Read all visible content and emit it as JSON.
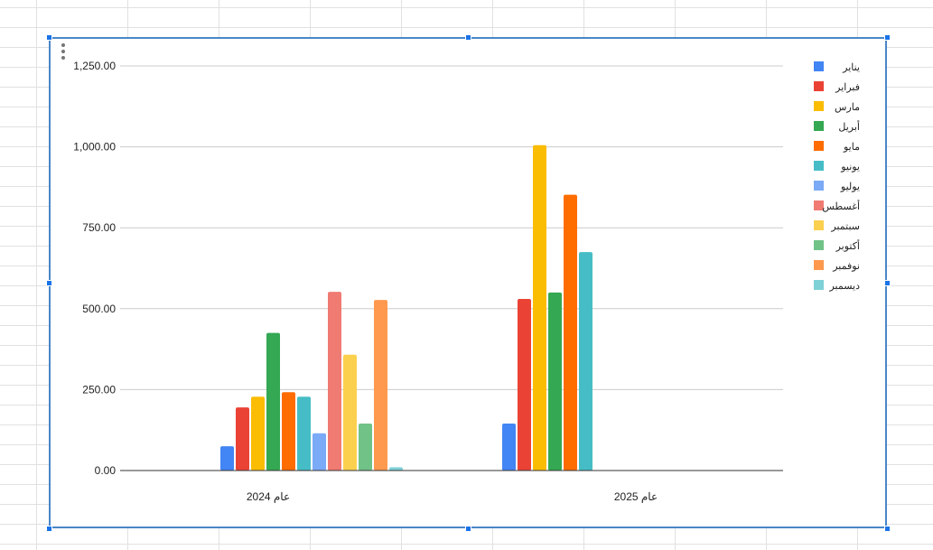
{
  "chart_data": {
    "type": "bar",
    "categories": [
      "عام 2024",
      "عام 2025"
    ],
    "series": [
      {
        "name": "يناير",
        "color": "#4285f4",
        "values": [
          75,
          145
        ]
      },
      {
        "name": "فبراير",
        "color": "#ea4335",
        "values": [
          195,
          530
        ]
      },
      {
        "name": "مارس",
        "color": "#fbbc04",
        "values": [
          228,
          1005
        ]
      },
      {
        "name": "أبريل",
        "color": "#34a853",
        "values": [
          425,
          550
        ]
      },
      {
        "name": "مايو",
        "color": "#ff6d01",
        "values": [
          242,
          852
        ]
      },
      {
        "name": "يونيو",
        "color": "#46bdc6",
        "values": [
          228,
          675
        ]
      },
      {
        "name": "يوليو",
        "color": "#7baaf7",
        "values": [
          115,
          null
        ]
      },
      {
        "name": "أغسطس",
        "color": "#f07b72",
        "values": [
          552,
          null
        ]
      },
      {
        "name": "سبتمبر",
        "color": "#fcd04f",
        "values": [
          358,
          null
        ]
      },
      {
        "name": "أكتوبر",
        "color": "#71c287",
        "values": [
          145,
          null
        ]
      },
      {
        "name": "نوفمبر",
        "color": "#ff994d",
        "values": [
          527,
          null
        ]
      },
      {
        "name": "ديسمبر",
        "color": "#7ed1d7",
        "values": [
          10,
          null
        ]
      }
    ],
    "y_ticks": [
      "0.00",
      "250.00",
      "500.00",
      "750.00",
      "1,000.00",
      "1,250.00"
    ],
    "ylim": [
      0,
      1250
    ],
    "grid": true,
    "legend_position": "right"
  }
}
